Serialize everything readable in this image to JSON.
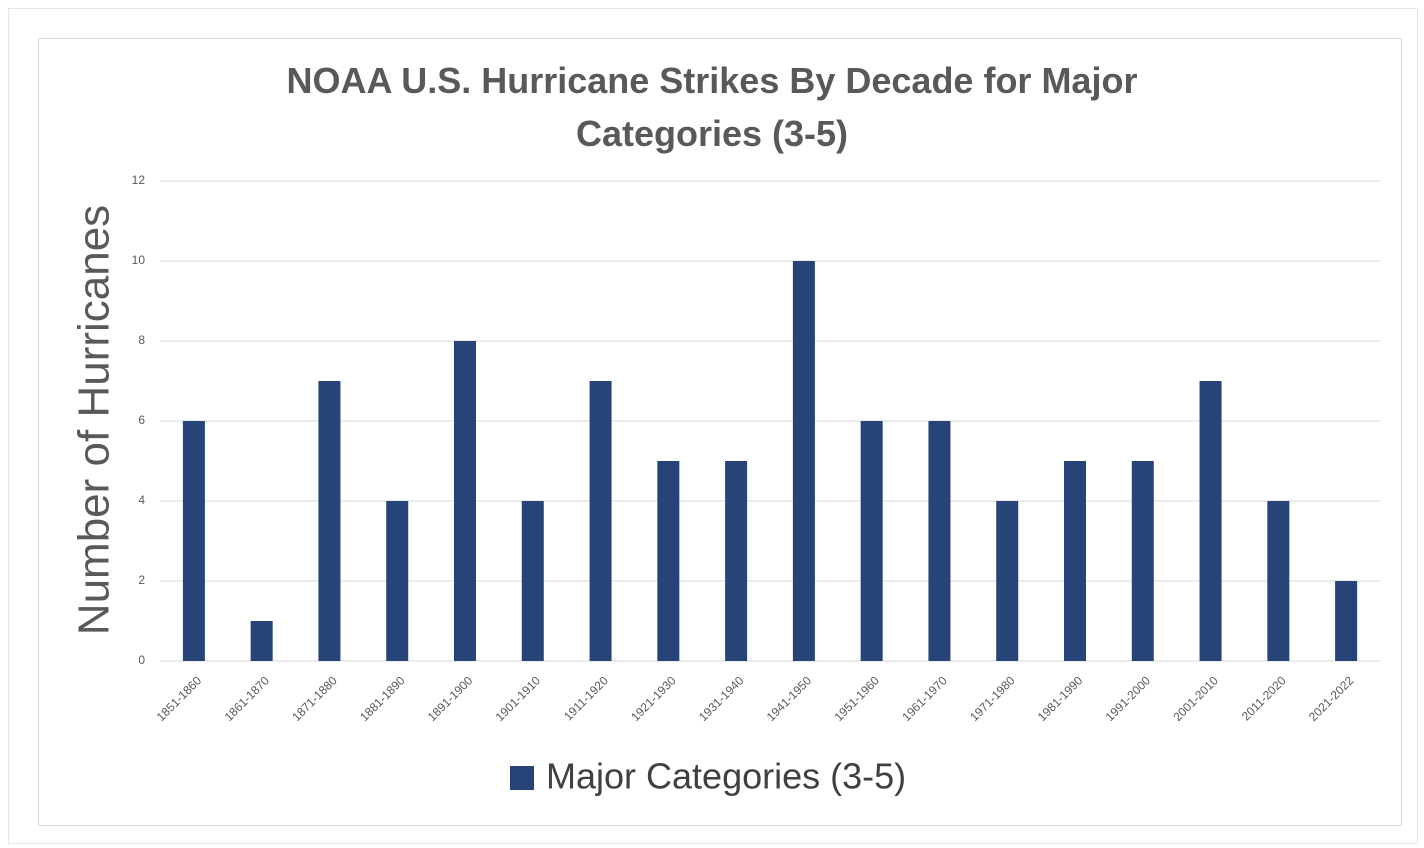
{
  "chart_data": {
    "type": "bar",
    "title": "NOAA U.S. Hurricane Strikes By Decade for Major Categories (3-5)",
    "y_label": "Number of Hurricanes",
    "categories": [
      "1851-1860",
      "1861-1870",
      "1871-1880",
      "1881-1890",
      "1891-1900",
      "1901-1910",
      "1911-1920",
      "1921-1930",
      "1931-1940",
      "1941-1950",
      "1951-1960",
      "1961-1970",
      "1971-1980",
      "1981-1990",
      "1991-2000",
      "2001-2010",
      "2011-2020",
      "2021-2022"
    ],
    "series": [
      {
        "name": "Major Categories (3-5)",
        "color": "#264478",
        "values": [
          6,
          1,
          7,
          4,
          8,
          4,
          7,
          5,
          5,
          10,
          6,
          6,
          4,
          5,
          5,
          7,
          4,
          2
        ]
      }
    ],
    "ylim": [
      0,
      12
    ],
    "yticks": [
      0,
      2,
      4,
      6,
      8,
      10,
      12
    ],
    "grid": true,
    "legend": "bottom"
  }
}
